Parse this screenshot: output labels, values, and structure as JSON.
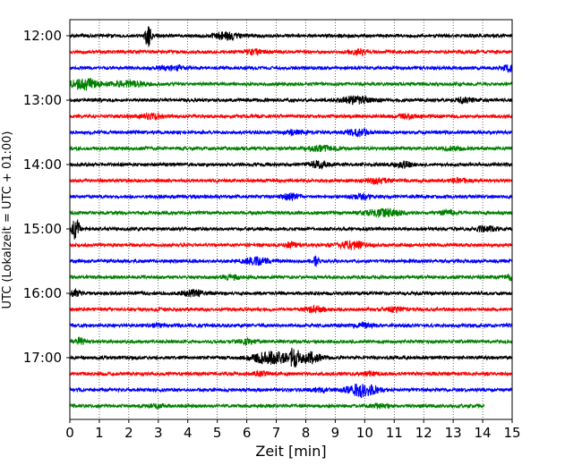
{
  "chart_data": {
    "type": "line",
    "title": "",
    "xlabel": "Zeit  [min]",
    "ylabel": "UTC (Lokalzeit = UTC + 01:00)",
    "xlim": [
      0,
      15
    ],
    "x_ticks": [
      0,
      1,
      2,
      3,
      4,
      5,
      6,
      7,
      8,
      9,
      10,
      11,
      12,
      13,
      14,
      15
    ],
    "x_tick_labels": [
      "0",
      "1",
      "2",
      "3",
      "4",
      "5",
      "6",
      "7",
      "8",
      "9",
      "10",
      "11",
      "12",
      "13",
      "14",
      "15"
    ],
    "y_tick_labels": [
      "12:00",
      "13:00",
      "14:00",
      "15:00",
      "16:00",
      "17:00"
    ],
    "row_interval_minutes": 15,
    "grid_x": true,
    "grid_style": "dotted",
    "trace_colors": [
      "#000000",
      "#ff0000",
      "#0000ff",
      "#008000"
    ],
    "traces": [
      {
        "time": "12:00",
        "color": "#000000",
        "end_min": 15,
        "events": [
          {
            "t": 2.65,
            "amp": 13,
            "width": 0.1
          },
          {
            "t": 5.3,
            "amp": 4,
            "width": 0.4
          }
        ]
      },
      {
        "time": "12:15",
        "color": "#ff0000",
        "end_min": 15,
        "events": [
          {
            "t": 6.2,
            "amp": 2.5,
            "width": 0.3
          },
          {
            "t": 9.8,
            "amp": 3,
            "width": 0.3
          }
        ]
      },
      {
        "time": "12:30",
        "color": "#0000ff",
        "end_min": 15,
        "events": [
          {
            "t": 3.5,
            "amp": 2,
            "width": 0.5
          },
          {
            "t": 14.9,
            "amp": 4,
            "width": 0.2
          }
        ]
      },
      {
        "time": "12:45",
        "color": "#008000",
        "end_min": 15,
        "events": [
          {
            "t": 0.5,
            "amp": 6,
            "width": 0.5
          },
          {
            "t": 2.0,
            "amp": 3,
            "width": 0.6
          }
        ]
      },
      {
        "time": "13:00",
        "color": "#000000",
        "end_min": 15,
        "events": [
          {
            "t": 9.7,
            "amp": 4,
            "width": 0.5
          },
          {
            "t": 13.4,
            "amp": 3,
            "width": 0.3
          }
        ]
      },
      {
        "time": "13:15",
        "color": "#ff0000",
        "end_min": 15,
        "events": [
          {
            "t": 2.8,
            "amp": 2.5,
            "width": 0.4
          },
          {
            "t": 11.5,
            "amp": 2,
            "width": 0.3
          }
        ]
      },
      {
        "time": "13:30",
        "color": "#0000ff",
        "end_min": 15,
        "events": [
          {
            "t": 9.8,
            "amp": 3.5,
            "width": 0.4
          },
          {
            "t": 7.6,
            "amp": 2,
            "width": 0.3
          }
        ]
      },
      {
        "time": "13:45",
        "color": "#008000",
        "end_min": 15,
        "events": [
          {
            "t": 8.5,
            "amp": 2.5,
            "width": 0.5
          },
          {
            "t": 13.0,
            "amp": 2,
            "width": 0.3
          }
        ]
      },
      {
        "time": "14:00",
        "color": "#000000",
        "end_min": 15,
        "events": [
          {
            "t": 8.4,
            "amp": 3.5,
            "width": 0.3
          },
          {
            "t": 11.3,
            "amp": 3,
            "width": 0.3
          }
        ]
      },
      {
        "time": "14:15",
        "color": "#ff0000",
        "end_min": 15,
        "events": [
          {
            "t": 10.4,
            "amp": 2.5,
            "width": 0.4
          },
          {
            "t": 13.2,
            "amp": 2,
            "width": 0.3
          }
        ]
      },
      {
        "time": "14:30",
        "color": "#0000ff",
        "end_min": 15,
        "events": [
          {
            "t": 7.5,
            "amp": 3,
            "width": 0.3
          },
          {
            "t": 10.0,
            "amp": 3,
            "width": 0.3
          }
        ]
      },
      {
        "time": "14:45",
        "color": "#008000",
        "end_min": 15,
        "events": [
          {
            "t": 10.6,
            "amp": 4,
            "width": 0.6
          },
          {
            "t": 12.8,
            "amp": 2,
            "width": 0.3
          }
        ]
      },
      {
        "time": "15:00",
        "color": "#000000",
        "end_min": 15,
        "events": [
          {
            "t": 0.2,
            "amp": 12,
            "width": 0.12
          },
          {
            "t": 14.1,
            "amp": 2.5,
            "width": 0.4
          }
        ]
      },
      {
        "time": "15:15",
        "color": "#ff0000",
        "end_min": 15,
        "events": [
          {
            "t": 9.6,
            "amp": 4,
            "width": 0.5
          },
          {
            "t": 7.5,
            "amp": 3,
            "width": 0.2
          }
        ]
      },
      {
        "time": "15:30",
        "color": "#0000ff",
        "end_min": 15,
        "events": [
          {
            "t": 8.35,
            "amp": 7,
            "width": 0.08
          },
          {
            "t": 6.3,
            "amp": 3.5,
            "width": 0.5
          }
        ]
      },
      {
        "time": "15:45",
        "color": "#008000",
        "end_min": 15,
        "events": [
          {
            "t": 14.9,
            "amp": 3,
            "width": 0.2
          },
          {
            "t": 5.5,
            "amp": 2,
            "width": 0.3
          }
        ]
      },
      {
        "time": "16:00",
        "color": "#000000",
        "end_min": 15,
        "events": [
          {
            "t": 4.2,
            "amp": 3,
            "width": 0.4
          },
          {
            "t": 0.2,
            "amp": 3,
            "width": 0.2
          }
        ]
      },
      {
        "time": "16:15",
        "color": "#ff0000",
        "end_min": 15,
        "events": [
          {
            "t": 8.3,
            "amp": 3,
            "width": 0.3
          },
          {
            "t": 11.0,
            "amp": 2,
            "width": 0.3
          }
        ]
      },
      {
        "time": "16:30",
        "color": "#0000ff",
        "end_min": 15,
        "events": [
          {
            "t": 10.0,
            "amp": 2,
            "width": 0.3
          },
          {
            "t": 3.0,
            "amp": 1.5,
            "width": 0.3
          }
        ]
      },
      {
        "time": "16:45",
        "color": "#008000",
        "end_min": 15,
        "events": [
          {
            "t": 0.35,
            "amp": 4,
            "width": 0.15
          },
          {
            "t": 6.0,
            "amp": 2,
            "width": 0.3
          }
        ]
      },
      {
        "time": "17:00",
        "color": "#000000",
        "end_min": 15,
        "events": [
          {
            "t": 6.8,
            "amp": 7,
            "width": 0.6
          },
          {
            "t": 7.6,
            "amp": 9,
            "width": 0.15
          },
          {
            "t": 8.1,
            "amp": 6,
            "width": 0.4
          }
        ]
      },
      {
        "time": "17:15",
        "color": "#ff0000",
        "end_min": 15,
        "events": [
          {
            "t": 6.5,
            "amp": 2,
            "width": 0.3
          },
          {
            "t": 10.2,
            "amp": 2,
            "width": 0.3
          }
        ]
      },
      {
        "time": "17:30",
        "color": "#0000ff",
        "end_min": 15,
        "events": [
          {
            "t": 9.9,
            "amp": 7,
            "width": 0.5
          },
          {
            "t": 8.5,
            "amp": 2,
            "width": 0.3
          }
        ]
      },
      {
        "time": "17:45",
        "color": "#008000",
        "end_min": 14.05,
        "events": [
          {
            "t": 10.5,
            "amp": 2,
            "width": 0.3
          },
          {
            "t": 3.0,
            "amp": 1.5,
            "width": 0.3
          }
        ]
      }
    ]
  }
}
